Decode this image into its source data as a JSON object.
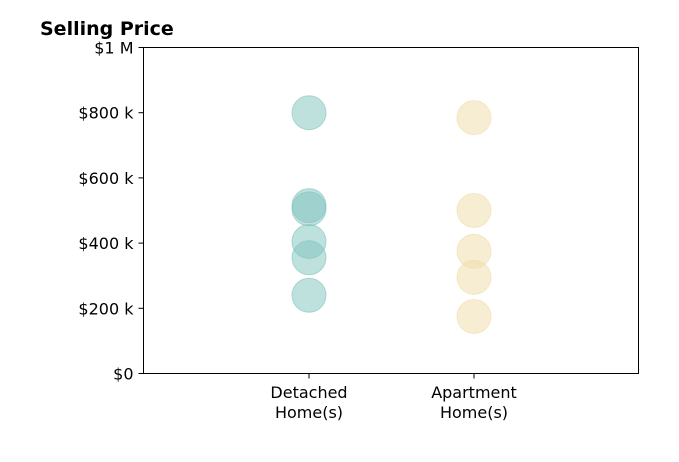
{
  "chart_data": {
    "type": "scatter",
    "title": "Selling Price",
    "xlabel": "",
    "ylabel": "",
    "categories": [
      "Detached\nHome(s)",
      "Apartment\nHome(s)"
    ],
    "y_ticks": [
      {
        "value": 0,
        "label": "$0"
      },
      {
        "value": 200000,
        "label": "$200 k"
      },
      {
        "value": 400000,
        "label": "$400 k"
      },
      {
        "value": 600000,
        "label": "$600 k"
      },
      {
        "value": 800000,
        "label": "$800 k"
      },
      {
        "value": 1000000,
        "label": "$1 M"
      }
    ],
    "ylim": [
      0,
      1000000
    ],
    "grid": false,
    "series": [
      {
        "category": "Detached\nHome(s)",
        "color": "#7fc4bd",
        "values": [
          800000,
          515000,
          505000,
          405000,
          355000,
          240000
        ]
      },
      {
        "category": "Apartment\nHome(s)",
        "color": "#f0dca8",
        "values": [
          785000,
          500000,
          375000,
          295000,
          175000
        ]
      }
    ]
  }
}
